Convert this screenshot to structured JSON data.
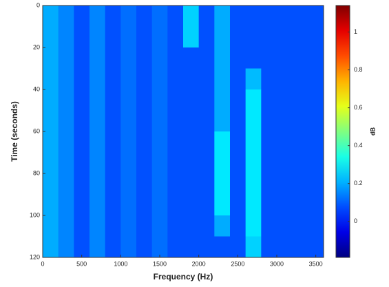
{
  "chart_data": {
    "type": "heatmap",
    "x_label": "Frequency (Hz)",
    "y_label": "Time (seconds)",
    "colorbar_label": "dB",
    "xlim": [
      0,
      3600
    ],
    "xticks": [
      0,
      500,
      1000,
      1500,
      2000,
      2500,
      3000,
      3500
    ],
    "ylim": [
      0,
      120
    ],
    "yticks": [
      0,
      20,
      40,
      60,
      80,
      100,
      120
    ],
    "y_inverted": true,
    "clim": [
      -0.19,
      1.14
    ],
    "cticks": [
      0,
      0.2,
      0.4,
      0.6,
      0.8,
      1
    ],
    "colormap": "jet",
    "z": [
      [
        0.2,
        0.15,
        0.08,
        0.15,
        0.08,
        0.12,
        0.08,
        0.12,
        0.08,
        0.25,
        0.08,
        0.2,
        0.08,
        0.08,
        0.08,
        0.08,
        0.08,
        0.08
      ],
      [
        0.2,
        0.15,
        0.08,
        0.15,
        0.08,
        0.12,
        0.08,
        0.12,
        0.08,
        0.25,
        0.08,
        0.2,
        0.08,
        0.08,
        0.08,
        0.08,
        0.08,
        0.08
      ],
      [
        0.2,
        0.15,
        0.08,
        0.15,
        0.08,
        0.12,
        0.08,
        0.12,
        0.08,
        0.08,
        0.08,
        0.2,
        0.08,
        0.08,
        0.08,
        0.08,
        0.08,
        0.08
      ],
      [
        0.2,
        0.15,
        0.08,
        0.15,
        0.08,
        0.12,
        0.08,
        0.12,
        0.08,
        0.08,
        0.08,
        0.2,
        0.08,
        0.22,
        0.08,
        0.08,
        0.08,
        0.08
      ],
      [
        0.2,
        0.15,
        0.08,
        0.15,
        0.08,
        0.12,
        0.08,
        0.12,
        0.08,
        0.08,
        0.08,
        0.2,
        0.08,
        0.28,
        0.08,
        0.08,
        0.08,
        0.08
      ],
      [
        0.2,
        0.15,
        0.08,
        0.15,
        0.08,
        0.12,
        0.08,
        0.12,
        0.08,
        0.08,
        0.08,
        0.2,
        0.08,
        0.28,
        0.08,
        0.08,
        0.08,
        0.08
      ],
      [
        0.2,
        0.15,
        0.08,
        0.15,
        0.08,
        0.12,
        0.08,
        0.12,
        0.08,
        0.08,
        0.08,
        0.28,
        0.08,
        0.28,
        0.08,
        0.08,
        0.08,
        0.08
      ],
      [
        0.2,
        0.15,
        0.08,
        0.15,
        0.08,
        0.12,
        0.08,
        0.12,
        0.08,
        0.08,
        0.08,
        0.28,
        0.08,
        0.28,
        0.08,
        0.08,
        0.08,
        0.08
      ],
      [
        0.2,
        0.15,
        0.08,
        0.15,
        0.08,
        0.12,
        0.08,
        0.12,
        0.08,
        0.08,
        0.08,
        0.28,
        0.08,
        0.28,
        0.08,
        0.08,
        0.08,
        0.08
      ],
      [
        0.2,
        0.15,
        0.08,
        0.15,
        0.08,
        0.12,
        0.08,
        0.12,
        0.08,
        0.08,
        0.08,
        0.28,
        0.08,
        0.28,
        0.08,
        0.08,
        0.08,
        0.08
      ],
      [
        0.2,
        0.15,
        0.08,
        0.15,
        0.08,
        0.12,
        0.08,
        0.12,
        0.08,
        0.08,
        0.08,
        0.2,
        0.08,
        0.28,
        0.08,
        0.08,
        0.08,
        0.08
      ],
      [
        0.2,
        0.15,
        0.08,
        0.15,
        0.08,
        0.12,
        0.08,
        0.12,
        0.08,
        0.08,
        0.08,
        0.08,
        0.08,
        0.25,
        0.08,
        0.08,
        0.08,
        0.08
      ]
    ]
  }
}
